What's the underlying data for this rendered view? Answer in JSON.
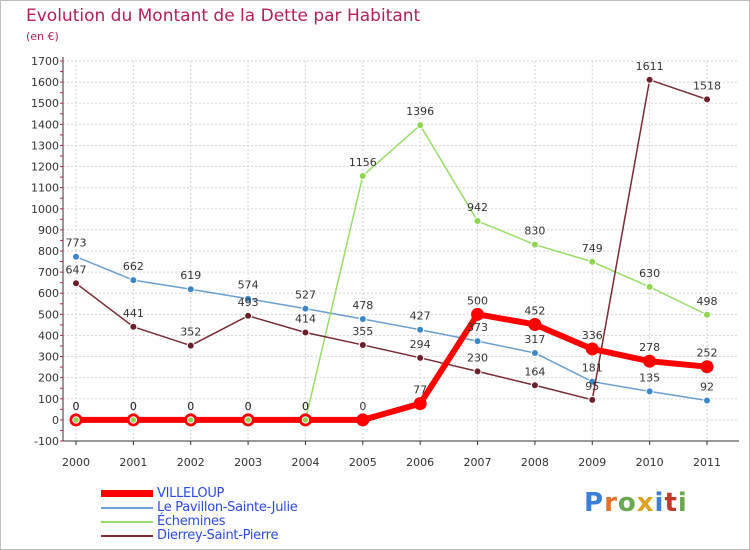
{
  "title": "Evolution du Montant de la Dette par Habitant",
  "subtitle": "(en €)",
  "brand": {
    "letters": [
      "P",
      "r",
      "o",
      "x",
      "i",
      "t",
      "i"
    ],
    "colors": [
      "#3b7fd6",
      "#e8722c",
      "#6aa84f",
      "#e0a020",
      "#3b7fd6",
      "#c0392b",
      "#6aa84f"
    ]
  },
  "chart_data": {
    "type": "line",
    "title": "Evolution du Montant de la Dette par Habitant",
    "ylabel": "(en €)",
    "xlabel": "",
    "x": [
      "2000",
      "2001",
      "2002",
      "2003",
      "2004",
      "2005",
      "2006",
      "2007",
      "2008",
      "2009",
      "2010",
      "2011"
    ],
    "yticks": [
      "-100",
      "0",
      "100",
      "200",
      "300",
      "400",
      "500",
      "600",
      "700",
      "800",
      "900",
      "1000",
      "1100",
      "1200",
      "1300",
      "1400",
      "1500",
      "1600",
      "1700"
    ],
    "ylim": [
      -100,
      1700
    ],
    "grid": true,
    "legend_position": "bottom-left",
    "series": [
      {
        "name": "VILLELOUP",
        "color": "#ff0000",
        "values": [
          0,
          0,
          0,
          0,
          0,
          0,
          77,
          500,
          452,
          336,
          278,
          252
        ],
        "labels": [
          "0",
          "0",
          "0",
          "0",
          "0",
          "0",
          "77",
          "500",
          "452",
          "336",
          "278",
          "252"
        ]
      },
      {
        "name": "Le Pavillon-Sainte-Julie",
        "color": "#6a9fd2",
        "values": [
          773,
          662,
          619,
          574,
          527,
          478,
          427,
          373,
          317,
          181,
          135,
          92
        ],
        "labels": [
          "773",
          "662",
          "619",
          "574",
          "527",
          "478",
          "427",
          "373",
          "317",
          "181",
          "135",
          "92"
        ]
      },
      {
        "name": "Échemines",
        "color": "#99dd66",
        "values": [
          0,
          0,
          0,
          0,
          0,
          1156,
          1396,
          942,
          830,
          749,
          630,
          498
        ],
        "labels": [
          "0",
          "0",
          "0",
          "0",
          "0",
          "1156",
          "1396",
          "942",
          "830",
          "749",
          "630",
          "498"
        ]
      },
      {
        "name": "Dierrey-Saint-Pierre",
        "color": "#7a2a34",
        "values": [
          647,
          441,
          352,
          493,
          414,
          355,
          294,
          230,
          164,
          95,
          1611,
          1518
        ],
        "labels": [
          "647",
          "441",
          "352",
          "493",
          "414",
          "355",
          "294",
          "230",
          "164",
          "95",
          "1611",
          "1518"
        ]
      }
    ]
  }
}
